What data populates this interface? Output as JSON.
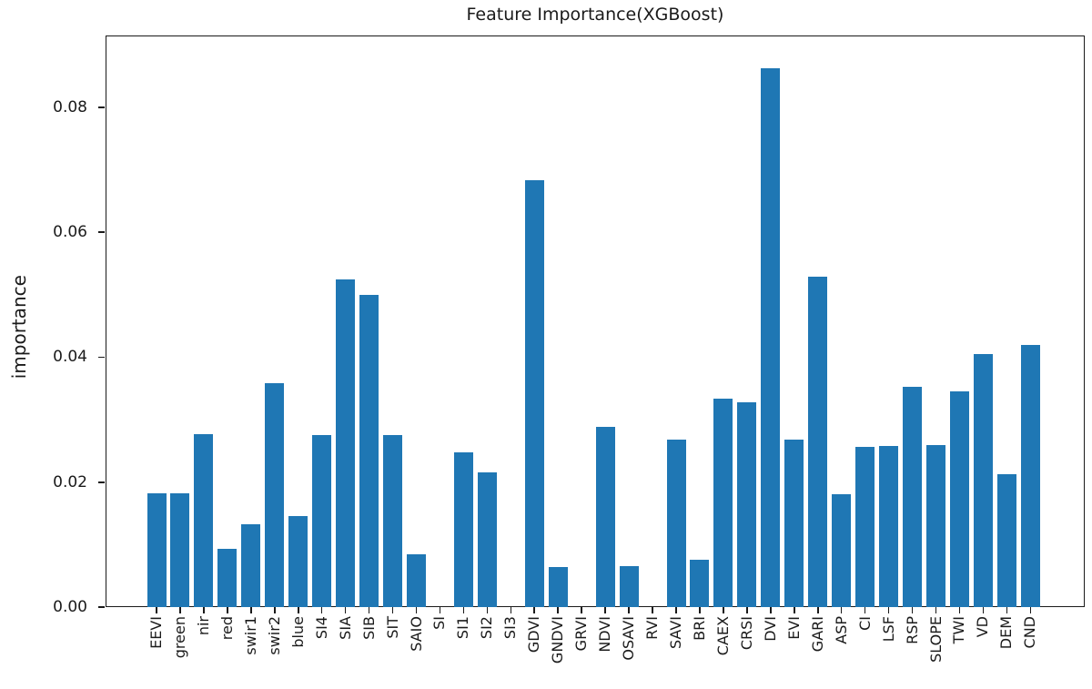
{
  "chart_data": {
    "type": "bar",
    "title": "Feature Importance(XGBoost)",
    "ylabel": "importance",
    "xlabel": "",
    "categories": [
      "EEVI",
      "green",
      "nir",
      "red",
      "swir1",
      "swir2",
      "blue",
      "SI4",
      "SIA",
      "SIB",
      "SIT",
      "SAIO",
      "SI",
      "SI1",
      "SI2",
      "SI3",
      "GDVI",
      "GNDVI",
      "GRVI",
      "NDVI",
      "OSAVI",
      "RVI",
      "SAVI",
      "BRI",
      "CAEX",
      "CRSI",
      "DVI",
      "EVI",
      "GARI",
      "ASP",
      "CI",
      "LSF",
      "RSP",
      "SLOPE",
      "TWI",
      "VD",
      "DEM",
      "CND"
    ],
    "values": [
      0.0182,
      0.0182,
      0.0277,
      0.0093,
      0.0132,
      0.0359,
      0.0145,
      0.0275,
      0.0525,
      0.05,
      0.0275,
      0.0085,
      0.0,
      0.0247,
      0.0215,
      0.0,
      0.0684,
      0.0064,
      0.0,
      0.0288,
      0.0066,
      0.0,
      0.0268,
      0.0076,
      0.0334,
      0.0328,
      0.0862,
      0.0268,
      0.0529,
      0.018,
      0.0257,
      0.0258,
      0.0352,
      0.0259,
      0.0345,
      0.0405,
      0.0212,
      0.0419
    ],
    "yticks": [
      0.0,
      0.02,
      0.04,
      0.06,
      0.08
    ],
    "ytick_labels": [
      "0.00",
      "0.02",
      "0.04",
      "0.06",
      "0.08"
    ],
    "ylim": [
      0,
      0.0915
    ],
    "bar_color": "#1f77b4",
    "axis_color": "#1a1a1a",
    "x_tick_rotation": 90,
    "grid": false,
    "legend": false
  }
}
